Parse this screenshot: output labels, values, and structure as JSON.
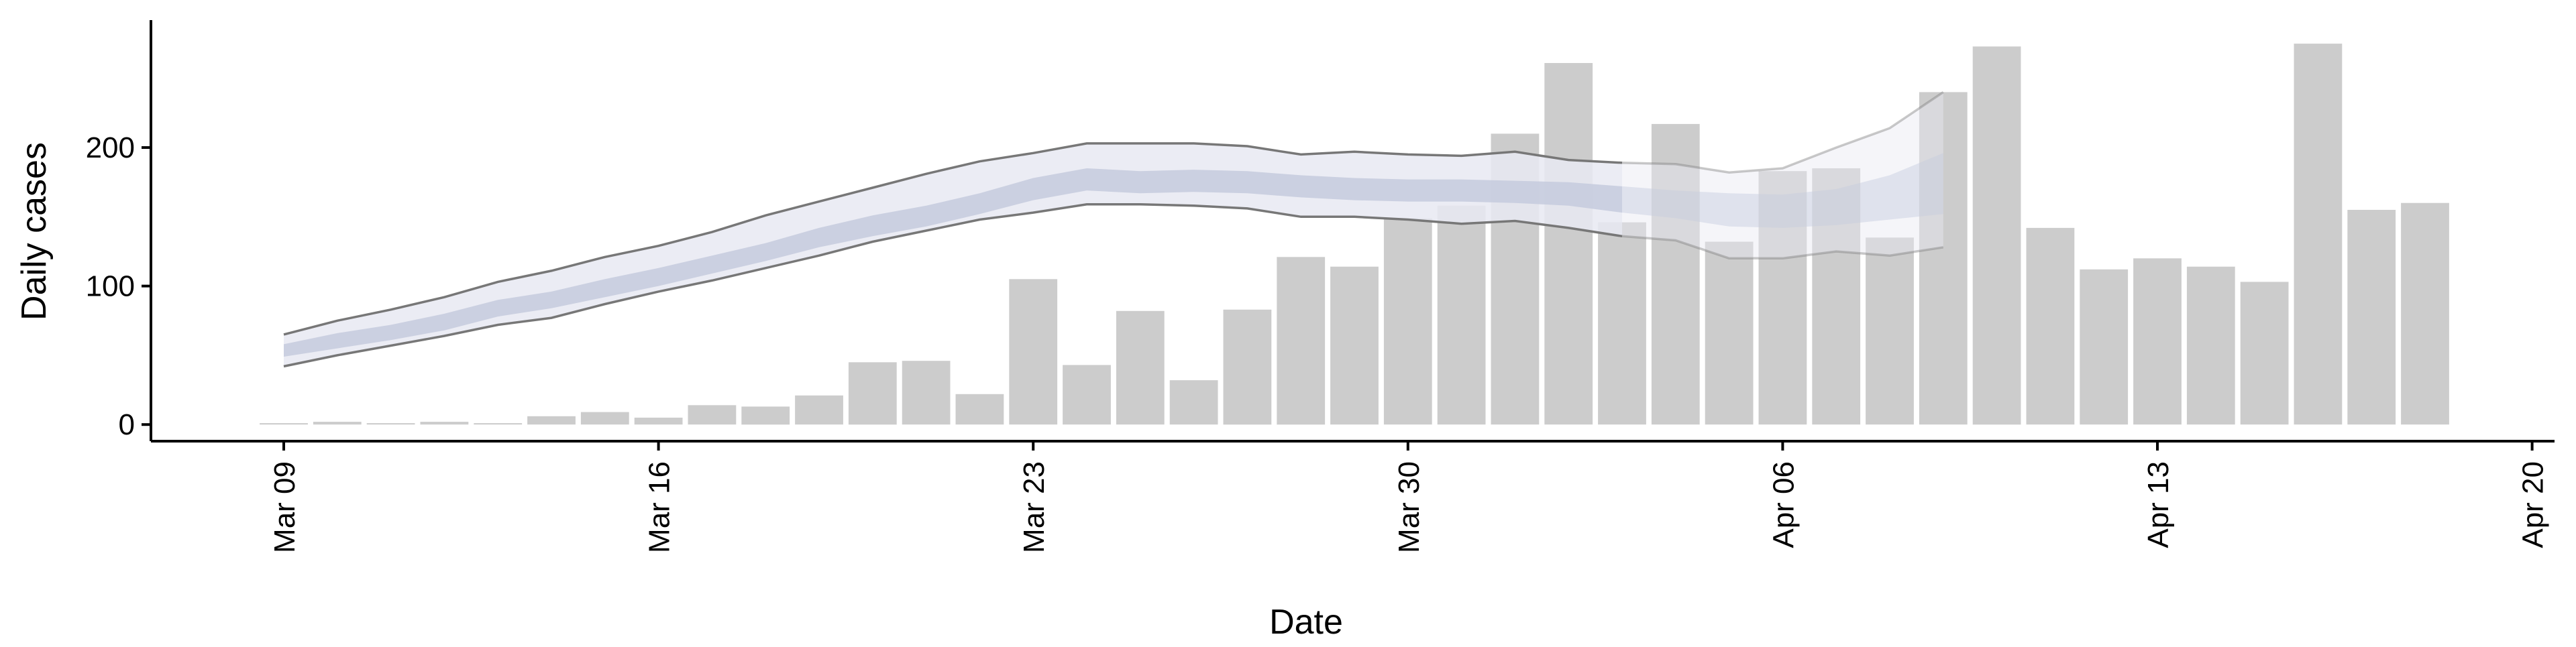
{
  "chart_data": {
    "type": "bar",
    "title": "",
    "xlabel": "Date",
    "ylabel": "Daily cases",
    "x_axis": {
      "type": "date",
      "ticks": [
        "Mar 09",
        "Mar 16",
        "Mar 23",
        "Mar 30",
        "Apr 06",
        "Apr 13",
        "Apr 20"
      ]
    },
    "y_axis": {
      "ylim": [
        -12,
        292
      ],
      "ticks": [
        0,
        100,
        200
      ]
    },
    "grid": false,
    "legend": "none",
    "bars": {
      "color": "#cccccc",
      "dates": [
        "Mar 09",
        "Mar 10",
        "Mar 11",
        "Mar 12",
        "Mar 13",
        "Mar 14",
        "Mar 15",
        "Mar 16",
        "Mar 17",
        "Mar 18",
        "Mar 19",
        "Mar 20",
        "Mar 21",
        "Mar 22",
        "Mar 23",
        "Mar 24",
        "Mar 25",
        "Mar 26",
        "Mar 27",
        "Mar 28",
        "Mar 29",
        "Mar 30",
        "Mar 31",
        "Apr 01",
        "Apr 02",
        "Apr 03",
        "Apr 04",
        "Apr 05",
        "Apr 06",
        "Apr 07",
        "Apr 08",
        "Apr 09",
        "Apr 10",
        "Apr 11",
        "Apr 12",
        "Apr 13",
        "Apr 14",
        "Apr 15",
        "Apr 16",
        "Apr 17",
        "Apr 18"
      ],
      "values": [
        1,
        2,
        1,
        2,
        1,
        6,
        9,
        5,
        14,
        13,
        21,
        45,
        46,
        22,
        105,
        43,
        82,
        32,
        83,
        121,
        114,
        149,
        158,
        210,
        261,
        146,
        217,
        132,
        183,
        185,
        135,
        240,
        273,
        142,
        112,
        120,
        114,
        103,
        275,
        155,
        160
      ]
    },
    "estimate_band": {
      "dates": [
        "Mar 09",
        "Mar 10",
        "Mar 11",
        "Mar 12",
        "Mar 13",
        "Mar 14",
        "Mar 15",
        "Mar 16",
        "Mar 17",
        "Mar 18",
        "Mar 19",
        "Mar 20",
        "Mar 21",
        "Mar 22",
        "Mar 23",
        "Mar 24",
        "Mar 25",
        "Mar 26",
        "Mar 27",
        "Mar 28",
        "Mar 29",
        "Mar 30",
        "Mar 31",
        "Apr 01",
        "Apr 02",
        "Apr 03",
        "Apr 04",
        "Apr 05",
        "Apr 06",
        "Apr 07",
        "Apr 08",
        "Apr 09"
      ],
      "outer_upper": [
        65,
        75,
        83,
        92,
        103,
        111,
        121,
        129,
        139,
        151,
        161,
        171,
        181,
        190,
        196,
        203,
        203,
        203,
        201,
        195,
        197,
        195,
        194,
        197,
        191,
        189,
        188,
        182,
        185,
        200,
        214,
        240
      ],
      "outer_lower": [
        42,
        50,
        57,
        64,
        72,
        77,
        87,
        96,
        104,
        113,
        122,
        132,
        140,
        148,
        153,
        159,
        159,
        158,
        156,
        150,
        150,
        148,
        145,
        147,
        142,
        136,
        133,
        120,
        120,
        125,
        122,
        128
      ],
      "inner_upper": [
        58,
        66,
        72,
        80,
        90,
        96,
        105,
        113,
        122,
        131,
        142,
        151,
        158,
        167,
        178,
        185,
        183,
        184,
        183,
        180,
        178,
        177,
        177,
        176,
        175,
        172,
        169,
        167,
        166,
        170,
        180,
        196
      ],
      "inner_lower": [
        49,
        55,
        61,
        68,
        78,
        84,
        92,
        100,
        109,
        118,
        128,
        136,
        143,
        152,
        162,
        169,
        167,
        168,
        167,
        164,
        162,
        161,
        161,
        160,
        158,
        153,
        149,
        143,
        142,
        144,
        148,
        152
      ],
      "outer_fill": "#e8e9f2",
      "inner_fill": "#c6cbdd",
      "line_color": "#777777"
    }
  }
}
